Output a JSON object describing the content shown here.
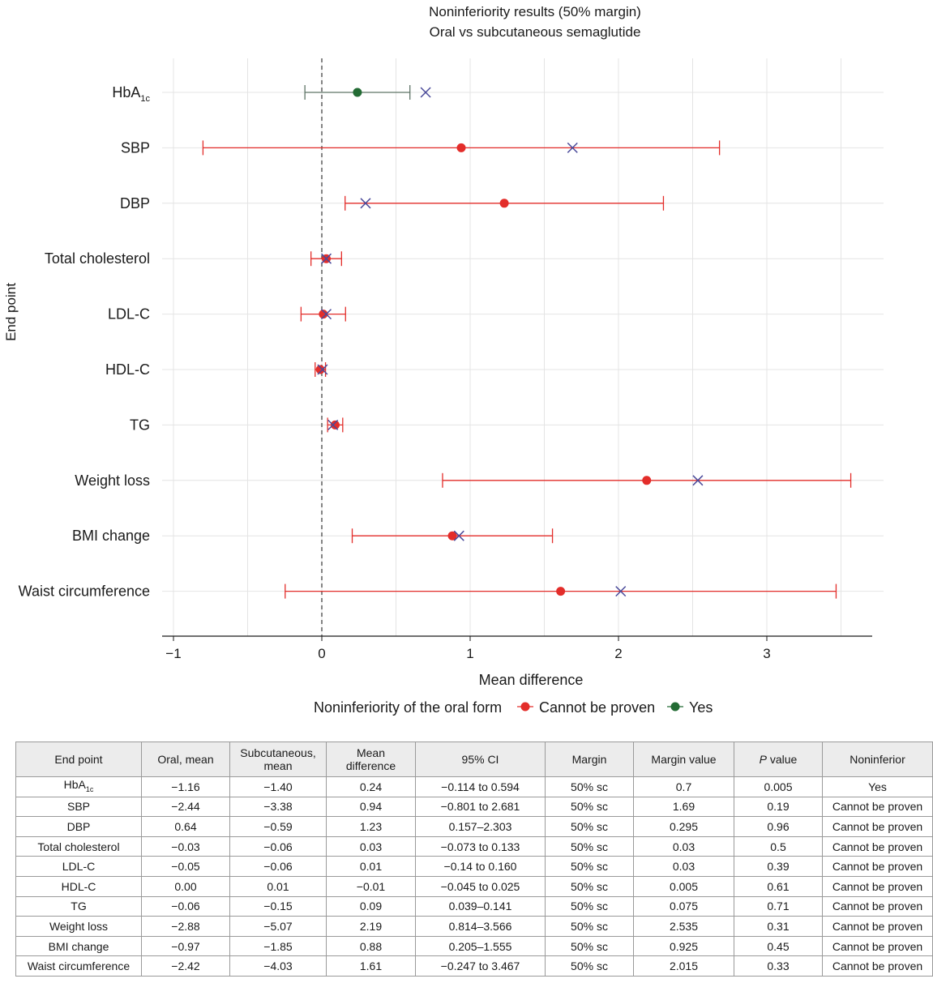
{
  "chart_data": {
    "type": "forest",
    "title": "Noninferiority results (50% margin)",
    "subtitle": "Oral vs subcutaneous semaglutide",
    "xlabel": "Mean difference",
    "ylabel": "End point",
    "xlim": [
      -1.1,
      3.7
    ],
    "xticks": [
      -1,
      0,
      1,
      2,
      3
    ],
    "xtick_labels": [
      "−1",
      "0",
      "1",
      "2",
      "3"
    ],
    "reference_line": 0,
    "grid": true,
    "legend": {
      "title": "Noninferiority of the oral form",
      "placement": "bottom",
      "entries": [
        {
          "label": "Cannot be proven",
          "color": "#e32d2a"
        },
        {
          "label": "Yes",
          "color": "#236b34"
        }
      ]
    },
    "colors": {
      "cannot": "#e32d2a",
      "yes": "#236b34",
      "margin_marker": "#4a4a9a"
    },
    "rows": [
      {
        "label": "HbA",
        "sub": "1c",
        "mean": 0.24,
        "lo": -0.114,
        "hi": 0.594,
        "margin": 0.7,
        "noninferior": "yes"
      },
      {
        "label": "SBP",
        "sub": "",
        "mean": 0.94,
        "lo": -0.801,
        "hi": 2.681,
        "margin": 1.69,
        "noninferior": "cannot"
      },
      {
        "label": "DBP",
        "sub": "",
        "mean": 1.23,
        "lo": 0.157,
        "hi": 2.303,
        "margin": 0.295,
        "noninferior": "cannot"
      },
      {
        "label": "Total cholesterol",
        "sub": "",
        "mean": 0.03,
        "lo": -0.073,
        "hi": 0.133,
        "margin": 0.03,
        "noninferior": "cannot"
      },
      {
        "label": "LDL-C",
        "sub": "",
        "mean": 0.01,
        "lo": -0.14,
        "hi": 0.16,
        "margin": 0.03,
        "noninferior": "cannot"
      },
      {
        "label": "HDL-C",
        "sub": "",
        "mean": -0.01,
        "lo": -0.045,
        "hi": 0.025,
        "margin": 0.005,
        "noninferior": "cannot"
      },
      {
        "label": "TG",
        "sub": "",
        "mean": 0.09,
        "lo": 0.039,
        "hi": 0.141,
        "margin": 0.075,
        "noninferior": "cannot"
      },
      {
        "label": "Weight loss",
        "sub": "",
        "mean": 2.19,
        "lo": 0.814,
        "hi": 3.566,
        "margin": 2.535,
        "noninferior": "cannot"
      },
      {
        "label": "BMI change",
        "sub": "",
        "mean": 0.88,
        "lo": 0.205,
        "hi": 1.555,
        "margin": 0.925,
        "noninferior": "cannot"
      },
      {
        "label": "Waist circumference",
        "sub": "",
        "mean": 1.61,
        "lo": -0.247,
        "hi": 3.467,
        "margin": 2.015,
        "noninferior": "cannot"
      }
    ]
  },
  "table": {
    "headers": [
      {
        "text": "End point"
      },
      {
        "text": "Oral, mean"
      },
      {
        "text": "Subcutaneous,",
        "line2": "mean"
      },
      {
        "text": "Mean",
        "line2": "difference"
      },
      {
        "text": "95% CI"
      },
      {
        "text": "Margin"
      },
      {
        "text": "Margin value"
      },
      {
        "text": "P",
        "italic": true,
        "rest": " value"
      },
      {
        "text": "Noninferior"
      }
    ],
    "rows": [
      [
        {
          "t": "HbA",
          "sub": "1c"
        },
        {
          "t": "−1.16"
        },
        {
          "t": "−1.40"
        },
        {
          "t": "0.24"
        },
        {
          "t": "−0.114 to 0.594"
        },
        {
          "t": "50% sc"
        },
        {
          "t": "0.7"
        },
        {
          "t": "0.005"
        },
        {
          "t": "Yes"
        }
      ],
      [
        {
          "t": "SBP"
        },
        {
          "t": "−2.44"
        },
        {
          "t": "−3.38"
        },
        {
          "t": "0.94"
        },
        {
          "t": "−0.801 to 2.681"
        },
        {
          "t": "50% sc"
        },
        {
          "t": "1.69"
        },
        {
          "t": "0.19"
        },
        {
          "t": "Cannot be proven"
        }
      ],
      [
        {
          "t": "DBP"
        },
        {
          "t": "0.64"
        },
        {
          "t": "−0.59"
        },
        {
          "t": "1.23"
        },
        {
          "t": "0.157–2.303"
        },
        {
          "t": "50% sc"
        },
        {
          "t": "0.295"
        },
        {
          "t": "0.96"
        },
        {
          "t": "Cannot be proven"
        }
      ],
      [
        {
          "t": "Total cholesterol"
        },
        {
          "t": "−0.03"
        },
        {
          "t": "−0.06"
        },
        {
          "t": "0.03"
        },
        {
          "t": "−0.073 to 0.133"
        },
        {
          "t": "50% sc"
        },
        {
          "t": "0.03"
        },
        {
          "t": "0.5"
        },
        {
          "t": "Cannot be proven"
        }
      ],
      [
        {
          "t": "LDL-C"
        },
        {
          "t": "−0.05"
        },
        {
          "t": "−0.06"
        },
        {
          "t": "0.01"
        },
        {
          "t": "−0.14 to 0.160"
        },
        {
          "t": "50% sc"
        },
        {
          "t": "0.03"
        },
        {
          "t": "0.39"
        },
        {
          "t": "Cannot be proven"
        }
      ],
      [
        {
          "t": "HDL-C"
        },
        {
          "t": "0.00"
        },
        {
          "t": "0.01"
        },
        {
          "t": "−0.01"
        },
        {
          "t": "−0.045 to 0.025"
        },
        {
          "t": "50% sc"
        },
        {
          "t": "0.005"
        },
        {
          "t": "0.61"
        },
        {
          "t": "Cannot be proven"
        }
      ],
      [
        {
          "t": "TG"
        },
        {
          "t": "−0.06"
        },
        {
          "t": "−0.15"
        },
        {
          "t": "0.09"
        },
        {
          "t": "0.039–0.141"
        },
        {
          "t": "50% sc"
        },
        {
          "t": "0.075"
        },
        {
          "t": "0.71"
        },
        {
          "t": "Cannot be proven"
        }
      ],
      [
        {
          "t": "Weight loss"
        },
        {
          "t": "−2.88"
        },
        {
          "t": "−5.07"
        },
        {
          "t": "2.19"
        },
        {
          "t": "0.814–3.566"
        },
        {
          "t": "50% sc"
        },
        {
          "t": "2.535"
        },
        {
          "t": "0.31"
        },
        {
          "t": "Cannot be proven"
        }
      ],
      [
        {
          "t": "BMI change"
        },
        {
          "t": "−0.97"
        },
        {
          "t": "−1.85"
        },
        {
          "t": "0.88"
        },
        {
          "t": "0.205–1.555"
        },
        {
          "t": "50% sc"
        },
        {
          "t": "0.925"
        },
        {
          "t": "0.45"
        },
        {
          "t": "Cannot be proven"
        }
      ],
      [
        {
          "t": "Waist circumference"
        },
        {
          "t": "−2.42"
        },
        {
          "t": "−4.03"
        },
        {
          "t": "1.61"
        },
        {
          "t": "−0.247 to 3.467"
        },
        {
          "t": "50% sc"
        },
        {
          "t": "2.015"
        },
        {
          "t": "0.33"
        },
        {
          "t": "Cannot be proven"
        }
      ]
    ]
  }
}
